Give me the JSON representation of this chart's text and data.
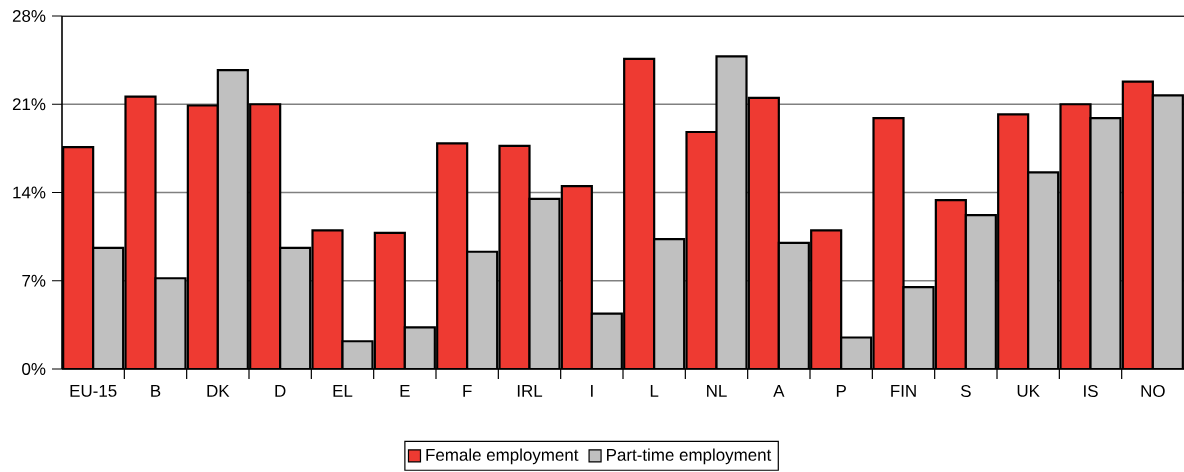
{
  "chart_data": {
    "type": "bar",
    "categories": [
      "EU-15",
      "B",
      "DK",
      "D",
      "EL",
      "E",
      "F",
      "IRL",
      "I",
      "L",
      "NL",
      "A",
      "P",
      "FIN",
      "S",
      "UK",
      "IS",
      "NO"
    ],
    "series": [
      {
        "name": "Female employment",
        "color": "#ee3a32",
        "values": [
          17.6,
          21.6,
          20.9,
          21.0,
          11.0,
          10.8,
          17.9,
          17.7,
          14.5,
          24.6,
          18.8,
          21.5,
          11.0,
          19.9,
          13.4,
          20.2,
          21.0,
          22.8
        ]
      },
      {
        "name": "Part-time employment",
        "color": "#c0c0c0",
        "values": [
          9.6,
          7.2,
          23.7,
          9.6,
          2.2,
          3.3,
          9.3,
          13.5,
          4.4,
          10.3,
          24.8,
          10.0,
          2.5,
          6.5,
          12.2,
          15.6,
          19.9,
          21.7
        ]
      }
    ],
    "ylim": [
      0,
      28
    ],
    "yticks": [
      {
        "value": 0,
        "label": "0%"
      },
      {
        "value": 7,
        "label": "7%"
      },
      {
        "value": 14,
        "label": "14%"
      },
      {
        "value": 21,
        "label": "21%"
      },
      {
        "value": 28,
        "label": "28%"
      }
    ],
    "grid": "y",
    "legend": "bottom"
  }
}
